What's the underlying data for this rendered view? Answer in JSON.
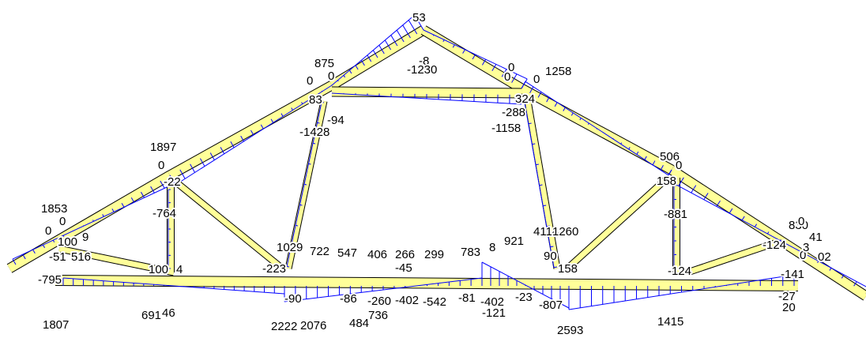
{
  "colors": {
    "member_fill": "#ffff99",
    "member_outline": "#000000",
    "diagram_line": "#0000ff",
    "background": "#ffffff"
  },
  "labels": [
    "53",
    "-8",
    "-1230",
    "875",
    "0",
    "0",
    "0",
    "1258",
    "0",
    "0",
    "83",
    "324",
    "-94",
    "-288",
    "-1428",
    "-1158",
    "1897",
    "0",
    "506",
    "0",
    "-22",
    "158",
    "1853",
    "-764",
    "-881",
    "0",
    "0",
    "9",
    "4114",
    "1260",
    "830",
    "100",
    "1029",
    "722",
    "547",
    "406",
    "266",
    "299",
    "783",
    "8",
    "921",
    "-124",
    "-51",
    "516",
    "90",
    "-223",
    "-45",
    "158",
    "-124",
    "100",
    "4",
    "-141",
    "-795",
    "-90",
    "-86",
    "-260",
    "-402",
    "-542",
    "-81",
    "-402",
    "-23",
    "-807",
    "-27",
    "691",
    "46",
    "-121",
    "20",
    "1807",
    "2222",
    "2076",
    "484",
    "736",
    "2593",
    "1415",
    "0",
    "0",
    "3",
    "02",
    "41"
  ]
}
